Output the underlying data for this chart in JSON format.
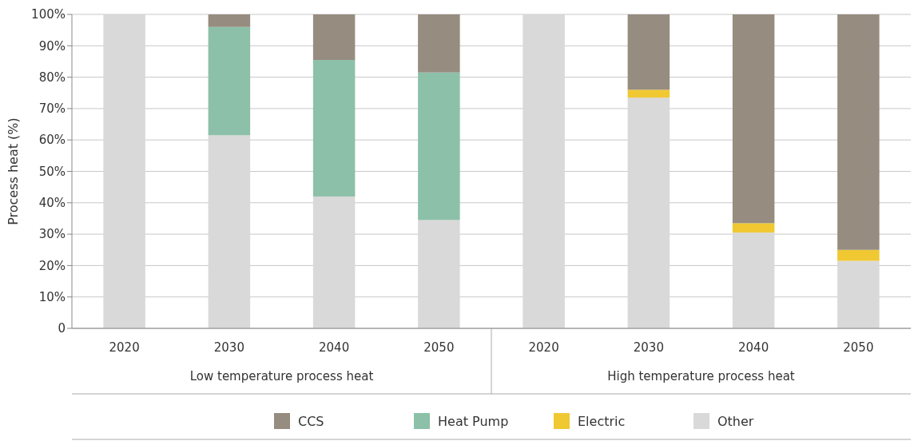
{
  "chart_data": {
    "type": "bar",
    "stacked": true,
    "ylabel": "Process heat (%)",
    "categories": [
      "2020",
      "2030",
      "2040",
      "2050",
      "2020",
      "2030",
      "2040",
      "2050"
    ],
    "annotations": [
      "Low temperature process heat",
      "High temperature process heat"
    ],
    "series": [
      {
        "name": "Other",
        "color": "#d9d9d9",
        "values": [
          100,
          61.5,
          42,
          34.5,
          100,
          73.5,
          30.5,
          21.5
        ]
      },
      {
        "name": "Electric",
        "color": "#f0c832",
        "values": [
          0,
          0,
          0,
          0,
          0,
          2.5,
          3,
          3.5
        ]
      },
      {
        "name": "Heat Pump",
        "color": "#8cc0a8",
        "values": [
          0,
          34.5,
          43.5,
          47,
          0,
          0,
          0,
          0
        ]
      },
      {
        "name": "CCS",
        "color": "#968c80",
        "values": [
          0,
          4,
          14.5,
          18.5,
          0,
          24,
          66.5,
          75
        ]
      }
    ],
    "ylim": [
      0,
      100
    ],
    "yticks": [
      {
        "value": 0,
        "label": "0"
      },
      {
        "value": 10,
        "label": "10%"
      },
      {
        "value": 20,
        "label": "20%"
      },
      {
        "value": 30,
        "label": "30%"
      },
      {
        "value": 40,
        "label": "40%"
      },
      {
        "value": 50,
        "label": "50%"
      },
      {
        "value": 60,
        "label": "60%"
      },
      {
        "value": 70,
        "label": "70%"
      },
      {
        "value": 80,
        "label": "80%"
      },
      {
        "value": 90,
        "label": "90%"
      },
      {
        "value": 100,
        "label": "100%"
      }
    ],
    "grid": "y",
    "legend": "bottom"
  }
}
